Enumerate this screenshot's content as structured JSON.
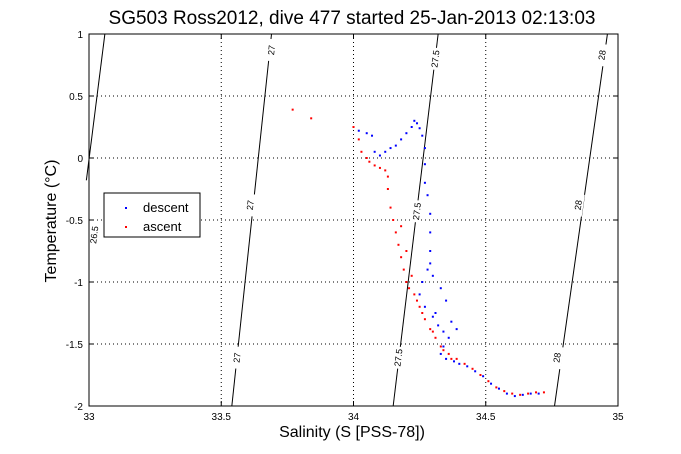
{
  "chart_data": {
    "type": "scatter",
    "title": "SG503 Ross2012, dive 477 started 25-Jan-2013 02:13:03",
    "xlabel": "Salinity (S [PSS-78])",
    "ylabel": "Temperature (°C)",
    "xlim": [
      33,
      35
    ],
    "ylim": [
      -2,
      1
    ],
    "xticks": [
      "33",
      "33.5",
      "34",
      "34.5",
      "35"
    ],
    "yticks": [
      "1",
      "0.5",
      "0",
      "-0.5",
      "-1",
      "-1.5",
      "-2"
    ],
    "grid": true,
    "legend_position": "left",
    "density_contours": [
      {
        "value": "26.5",
        "points": [
          [
            33.06,
            1.0
          ],
          [
            32.99,
            -0.18
          ]
        ],
        "labels": [
          [
            33.02,
            -0.62
          ]
        ]
      },
      {
        "value": "27",
        "points": [
          [
            33.69,
            1.0
          ],
          [
            33.54,
            -2.0
          ]
        ],
        "labels": [
          [
            33.69,
            0.87
          ],
          [
            33.61,
            -0.38
          ],
          [
            33.56,
            -1.61
          ]
        ]
      },
      {
        "value": "27.5",
        "points": [
          [
            34.32,
            1.0
          ],
          [
            34.15,
            -2.0
          ]
        ],
        "labels": [
          [
            34.31,
            0.8
          ],
          [
            34.24,
            -0.43
          ],
          [
            34.17,
            -1.61
          ]
        ]
      },
      {
        "value": "28",
        "points": [
          [
            34.96,
            1.0
          ],
          [
            34.76,
            -2.0
          ]
        ],
        "labels": [
          [
            34.94,
            0.83
          ],
          [
            34.85,
            -0.38
          ],
          [
            34.77,
            -1.61
          ]
        ]
      }
    ],
    "series": [
      {
        "name": "descent",
        "color": "#0000ff",
        "points": [
          [
            34.02,
            0.22
          ],
          [
            34.05,
            0.2
          ],
          [
            34.07,
            0.18
          ],
          [
            34.08,
            0.05
          ],
          [
            34.1,
            0.02
          ],
          [
            34.12,
            0.05
          ],
          [
            34.14,
            0.08
          ],
          [
            34.16,
            0.1
          ],
          [
            34.18,
            0.15
          ],
          [
            34.2,
            0.2
          ],
          [
            34.22,
            0.25
          ],
          [
            34.23,
            0.3
          ],
          [
            34.24,
            0.28
          ],
          [
            34.25,
            0.24
          ],
          [
            34.26,
            0.18
          ],
          [
            34.27,
            0.08
          ],
          [
            34.27,
            -0.05
          ],
          [
            34.27,
            -0.2
          ],
          [
            34.28,
            -0.3
          ],
          [
            34.29,
            -0.45
          ],
          [
            34.29,
            -0.6
          ],
          [
            34.29,
            -0.75
          ],
          [
            34.28,
            -0.9
          ],
          [
            34.26,
            -1.0
          ],
          [
            34.25,
            -1.1
          ],
          [
            34.27,
            -1.2
          ],
          [
            34.3,
            -1.28
          ],
          [
            34.32,
            -1.35
          ],
          [
            34.34,
            -1.4
          ],
          [
            34.36,
            -1.45
          ],
          [
            34.34,
            -1.52
          ],
          [
            34.33,
            -1.58
          ],
          [
            34.35,
            -1.62
          ],
          [
            34.38,
            -1.64
          ],
          [
            34.4,
            -1.66
          ],
          [
            34.43,
            -1.68
          ],
          [
            34.46,
            -1.72
          ],
          [
            34.49,
            -1.76
          ],
          [
            34.52,
            -1.82
          ],
          [
            34.55,
            -1.86
          ],
          [
            34.58,
            -1.9
          ],
          [
            34.61,
            -1.92
          ],
          [
            34.64,
            -1.91
          ],
          [
            34.67,
            -1.9
          ],
          [
            34.7,
            -1.9
          ],
          [
            34.3,
            -0.95
          ],
          [
            34.33,
            -1.05
          ],
          [
            34.35,
            -1.15
          ],
          [
            34.31,
            -1.25
          ],
          [
            34.37,
            -1.32
          ],
          [
            34.39,
            -1.38
          ],
          [
            34.29,
            -0.85
          ]
        ]
      },
      {
        "name": "ascent",
        "color": "#ff0000",
        "points": [
          [
            33.77,
            0.39
          ],
          [
            33.84,
            0.32
          ],
          [
            34.0,
            0.25
          ],
          [
            34.02,
            0.15
          ],
          [
            34.03,
            0.05
          ],
          [
            34.05,
            0.0
          ],
          [
            34.06,
            -0.03
          ],
          [
            34.08,
            -0.06
          ],
          [
            34.1,
            -0.08
          ],
          [
            34.12,
            -0.1
          ],
          [
            34.13,
            -0.15
          ],
          [
            34.13,
            -0.25
          ],
          [
            34.14,
            -0.4
          ],
          [
            34.15,
            -0.5
          ],
          [
            34.16,
            -0.6
          ],
          [
            34.17,
            -0.7
          ],
          [
            34.18,
            -0.8
          ],
          [
            34.19,
            -0.9
          ],
          [
            34.2,
            -1.0
          ],
          [
            34.21,
            -1.05
          ],
          [
            34.23,
            -1.1
          ],
          [
            34.25,
            -1.2
          ],
          [
            34.27,
            -1.3
          ],
          [
            34.29,
            -1.38
          ],
          [
            34.31,
            -1.45
          ],
          [
            34.33,
            -1.52
          ],
          [
            34.36,
            -1.58
          ],
          [
            34.39,
            -1.62
          ],
          [
            34.42,
            -1.66
          ],
          [
            34.45,
            -1.7
          ],
          [
            34.48,
            -1.75
          ],
          [
            34.51,
            -1.8
          ],
          [
            34.54,
            -1.85
          ],
          [
            34.57,
            -1.88
          ],
          [
            34.6,
            -1.9
          ],
          [
            34.63,
            -1.91
          ],
          [
            34.66,
            -1.9
          ],
          [
            34.69,
            -1.89
          ],
          [
            34.72,
            -1.89
          ],
          [
            34.18,
            -0.55
          ],
          [
            34.2,
            -0.75
          ],
          [
            34.22,
            -0.95
          ],
          [
            34.24,
            -1.15
          ],
          [
            34.26,
            -1.25
          ],
          [
            34.3,
            -1.4
          ],
          [
            34.34,
            -1.55
          ],
          [
            34.37,
            -1.62
          ]
        ]
      }
    ]
  }
}
